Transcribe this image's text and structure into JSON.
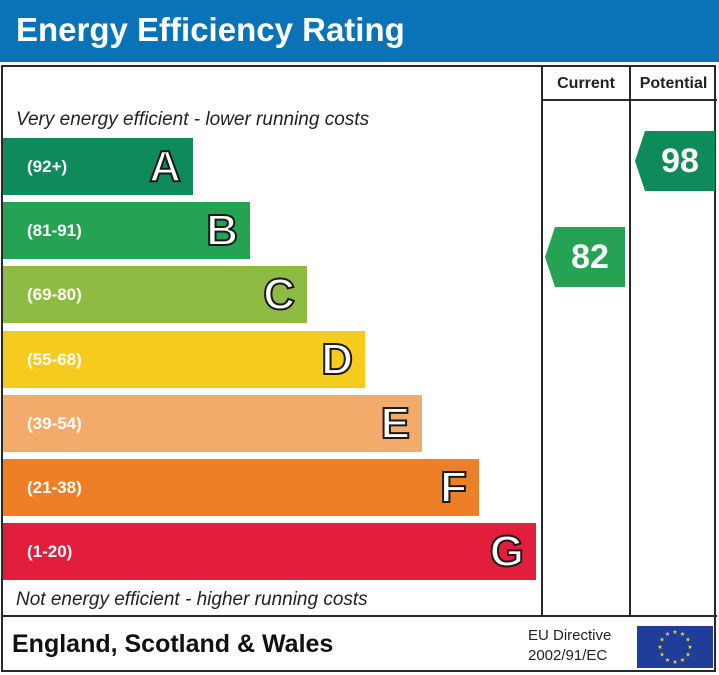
{
  "header": {
    "title": "Energy Efficiency Rating"
  },
  "columns": {
    "current": "Current",
    "potential": "Potential"
  },
  "captions": {
    "top": "Very energy efficient - lower running costs",
    "bottom": "Not energy efficient - higher running costs"
  },
  "footer": {
    "region": "England, Scotland & Wales",
    "directive_line1": "EU Directive",
    "directive_line2": "2002/91/EC",
    "flag_icon": "eu-flag-icon"
  },
  "chart_data": {
    "type": "bar",
    "categories": [
      "A",
      "B",
      "C",
      "D",
      "E",
      "F",
      "G"
    ],
    "ranges": [
      "(92+)",
      "(81-91)",
      "(69-80)",
      "(55-68)",
      "(39-54)",
      "(21-38)",
      "(1-20)"
    ],
    "colors": [
      "#0f8a5a",
      "#25a352",
      "#8dbb43",
      "#f5cc1d",
      "#f2ab6b",
      "#ee7f27",
      "#e31d3c"
    ],
    "current": {
      "value": 82,
      "band": "B",
      "color": "#25a352"
    },
    "potential": {
      "value": 98,
      "band": "A",
      "color": "#0f8a5a"
    }
  }
}
